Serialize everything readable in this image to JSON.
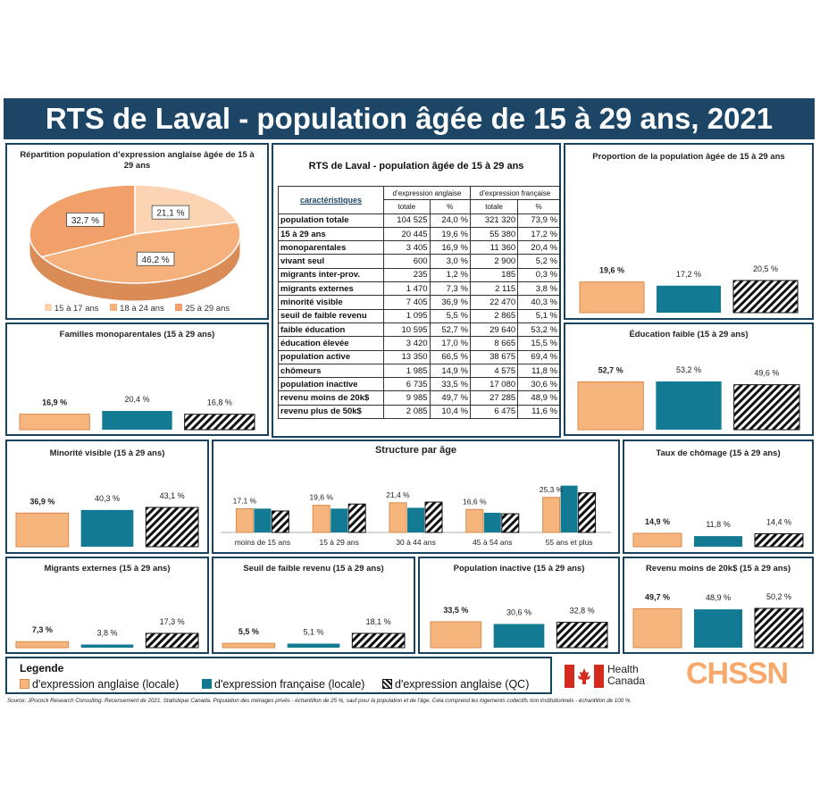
{
  "title": "RTS de Laval - population âgée de 15 à 29 ans, 2021",
  "colors": {
    "orange": "#f7b57e",
    "teal": "#127a92",
    "navy": "#1d4666",
    "pie_light": "#fbd4b4",
    "pie_mid": "#f5b07c",
    "pie_dark": "#f0a068"
  },
  "pie": {
    "title": "Répartition population d’expression anglaise âgée de 15 à 29 ans",
    "labels": [
      "21,1 %",
      "46,2 %",
      "32,7 %"
    ],
    "legend": [
      "15 à 17 ans",
      "18 à 24 ans",
      "25 à 29 ans"
    ]
  },
  "table": {
    "title": "RTS de Laval - population âgée de 15 à 29 ans",
    "header_group": [
      "d’expression anglaise",
      "d’expression française"
    ],
    "header_cols": [
      "caractéristiques",
      "totale",
      "%",
      "totale",
      "%"
    ],
    "rows": [
      [
        "population totale",
        "104 525",
        "24,0 %",
        "321 320",
        "73,9 %"
      ],
      [
        "15 à 29 ans",
        "20 445",
        "19,6 %",
        "55 380",
        "17,2 %"
      ],
      [
        "monoparentales",
        "3 405",
        "16,9 %",
        "11 360",
        "20,4 %"
      ],
      [
        "vivant seul",
        "600",
        "3,0 %",
        "2 900",
        "5,2 %"
      ],
      [
        "migrants inter-prov.",
        "235",
        "1,2 %",
        "185",
        "0,3 %"
      ],
      [
        "migrants externes",
        "1 470",
        "7,3 %",
        "2 115",
        "3,8 %"
      ],
      [
        "minorité visible",
        "7 405",
        "36,9 %",
        "22 470",
        "40,3 %"
      ],
      [
        "seuil de faible revenu",
        "1 095",
        "5,5 %",
        "2 865",
        "5,1 %"
      ],
      [
        "faible éducation",
        "10 595",
        "52,7 %",
        "29 640",
        "53,2 %"
      ],
      [
        "éducation élevée",
        "3 420",
        "17,0 %",
        "8 665",
        "15,5 %"
      ],
      [
        "population active",
        "13 350",
        "66,5 %",
        "38 675",
        "69,4 %"
      ],
      [
        "chômeurs",
        "1 985",
        "14,9 %",
        "4 575",
        "11,8 %"
      ],
      [
        "population inactive",
        "6 735",
        "33,5 %",
        "17 080",
        "30,6 %"
      ],
      [
        "revenu moins de 20k$",
        "9 985",
        "49,7 %",
        "27 285",
        "48,9 %"
      ],
      [
        "revenu plus de 50k$",
        "2 085",
        "10,4 %",
        "6 475",
        "11,6 %"
      ]
    ]
  },
  "chart_data": [
    {
      "id": "prop",
      "type": "bar",
      "title": "Proportion de la population âgée de 15 à 29 ans",
      "values": [
        19.6,
        17.2,
        20.5
      ],
      "labels": [
        "19,6 %",
        "17,2 %",
        "20,5 %"
      ]
    },
    {
      "id": "mono",
      "type": "bar",
      "title": "Familles monoparentales (15 à 29 ans)",
      "values": [
        16.9,
        20.4,
        16.8
      ],
      "labels": [
        "16,9 %",
        "20,4 %",
        "16,8 %"
      ]
    },
    {
      "id": "educ",
      "type": "bar",
      "title": "Éducation faible (15 à 29 ans)",
      "values": [
        52.7,
        53.2,
        49.6
      ],
      "labels": [
        "52,7 %",
        "53,2 %",
        "49,6 %"
      ]
    },
    {
      "id": "minor",
      "type": "bar",
      "title": "Minorité visible (15 à 29 ans)",
      "values": [
        36.9,
        40.3,
        43.1
      ],
      "labels": [
        "36,9 %",
        "40,3 %",
        "43,1 %"
      ]
    },
    {
      "id": "struct",
      "type": "bar",
      "title": "Structure par âge",
      "categories": [
        "moins de 15 ans",
        "15 à 29 ans",
        "30 à 44 ans",
        "45 à 54 ans",
        "55 ans et plus"
      ],
      "series": [
        {
          "values": [
            17.1,
            19.6,
            21.4,
            16.6,
            25.3
          ]
        },
        {
          "values": [
            17.2,
            17.2,
            17.8,
            14.2,
            33.8
          ]
        },
        {
          "values": [
            15.5,
            20.5,
            21.9,
            13.5,
            28.6
          ]
        }
      ],
      "labels": [
        "17,1 %",
        "19,6 %",
        "21,4 %",
        "16,6 %",
        "25,3 %"
      ]
    },
    {
      "id": "chom",
      "type": "bar",
      "title": "Taux de chômage (15 à 29 ans)",
      "values": [
        14.9,
        11.8,
        14.4
      ],
      "labels": [
        "14,9 %",
        "11,8 %",
        "14,4 %"
      ]
    },
    {
      "id": "migr",
      "type": "bar",
      "title": "Migrants externes (15 à 29 ans)",
      "values": [
        7.3,
        3.8,
        17.3
      ],
      "labels": [
        "7,3 %",
        "3,8 %",
        "17,3 %"
      ]
    },
    {
      "id": "seuil",
      "type": "bar",
      "title": "Seuil de faible revenu (15 à 29 ans)",
      "values": [
        5.5,
        5.1,
        18.1
      ],
      "labels": [
        "5,5 %",
        "5,1 %",
        "18,1 %"
      ]
    },
    {
      "id": "inact",
      "type": "bar",
      "title": "Population inactive (15 à 29 ans)",
      "values": [
        33.5,
        30.6,
        32.8
      ],
      "labels": [
        "33,5 %",
        "30,6 %",
        "32,8 %"
      ]
    },
    {
      "id": "rev",
      "type": "bar",
      "title": "Revenu moins de 20k$ (15 à 29 ans)",
      "values": [
        49.7,
        48.9,
        50.2
      ],
      "labels": [
        "49,7 %",
        "48,9 %",
        "50,2 %"
      ]
    }
  ],
  "legend": {
    "title": "Legende",
    "items": [
      "d'expression anglaise (locale)",
      "d'expression française (locale)",
      "d'expression anglaise (QC)"
    ]
  },
  "logos": {
    "health_canada": "Health Canada",
    "chssn": "CHSSN"
  },
  "source": "Source: JPocock Research Consulting. Recensement de 2021. Statistique Canada. Population des ménages privés - échantillon de 25 %, sauf pour la population et de l'âge. Cela comprend les logements collectifs non institutionnels - échantillon de 100 %."
}
